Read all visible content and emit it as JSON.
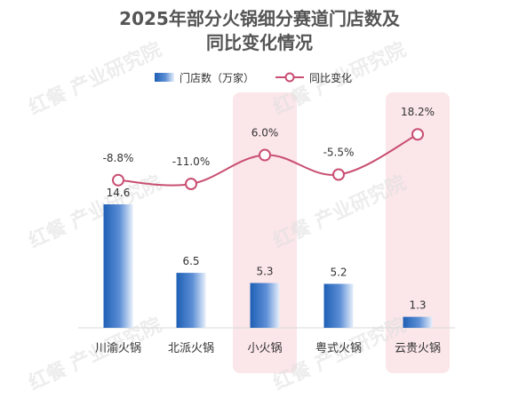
{
  "chart_data": {
    "type": "bar+line",
    "title_line1": "2025年部分火锅细分赛道门店数及",
    "title_line2": "同比变化情况",
    "categories": [
      "川渝火锅",
      "北派火锅",
      "小火锅",
      "粤式火锅",
      "云贵火锅"
    ],
    "series": [
      {
        "name": "门店数（万家）",
        "type": "bar",
        "values": [
          14.6,
          6.5,
          5.3,
          5.2,
          1.3
        ],
        "labels": [
          "14.6",
          "6.5",
          "5.3",
          "5.2",
          "1.3"
        ]
      },
      {
        "name": "同比变化",
        "type": "line",
        "values": [
          -8.8,
          -11.0,
          6.0,
          -5.5,
          18.2
        ],
        "labels": [
          "-8.8%",
          "-11.0%",
          "6.0%",
          "-5.5%",
          "18.2%"
        ]
      }
    ],
    "highlighted_categories": [
      "小火锅",
      "云贵火锅"
    ],
    "legend_position": "top",
    "grid": false,
    "colors": {
      "bar_dark": "#1e5fb4",
      "bar_light": "#e8f0fb",
      "line": "#c94f72",
      "highlight": "#fbe6e9",
      "title": "#555555"
    }
  },
  "watermark": "红餐 产业研究院"
}
